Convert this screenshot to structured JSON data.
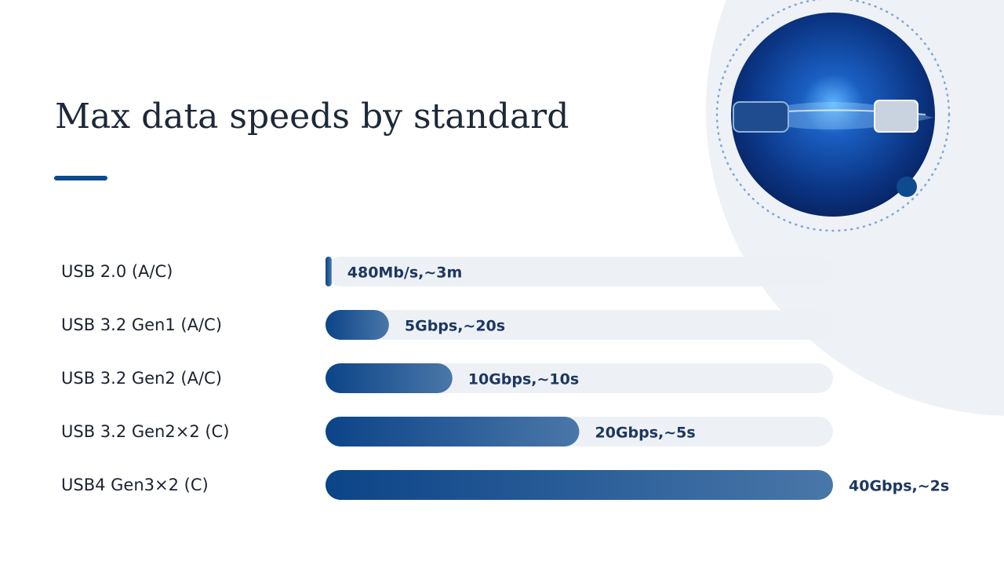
{
  "chart_data": {
    "type": "bar",
    "orientation": "horizontal",
    "title": "Max data speeds by standard",
    "categories": [
      "USB 2.0 (A/C)",
      "USB 3.2 Gen1 (A/C)",
      "USB 3.2 Gen2 (A/C)",
      "USB 3.2 Gen2×2 (C)",
      "USB4 Gen3×2 (C)"
    ],
    "values": [
      0.48,
      5,
      10,
      20,
      40
    ],
    "value_labels": [
      "480Mb/s,~3m",
      "5Gbps,~20s",
      "10Gbps,~10s",
      "20Gbps,~5s",
      "40Gbps,~2s"
    ],
    "xlim": [
      0,
      40
    ],
    "color": "#0e4a8e"
  }
}
